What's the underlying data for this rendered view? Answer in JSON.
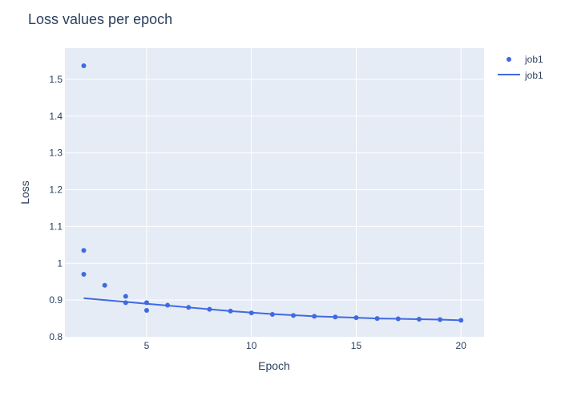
{
  "chart_data": {
    "type": "scatter",
    "title": "Loss values per epoch",
    "xlabel": "Epoch",
    "ylabel": "Loss",
    "xlim": [
      1.1,
      21.1
    ],
    "ylim": [
      0.8,
      1.585
    ],
    "xticks": [
      5,
      10,
      15,
      20
    ],
    "yticks": [
      0.8,
      0.9,
      1,
      1.1,
      1.2,
      1.3,
      1.4,
      1.5
    ],
    "xtick_labels": [
      "5",
      "10",
      "15",
      "20"
    ],
    "ytick_labels": [
      "0.8",
      "0.9",
      "1",
      "1.1",
      "1.2",
      "1.3",
      "1.4",
      "1.5"
    ],
    "grid": true,
    "legend_position": "top-right",
    "colors": {
      "series": "#4169e1",
      "plot_bg": "#e5ecf6",
      "grid": "#ffffff",
      "text": "#2a3f5f"
    },
    "series": [
      {
        "name": "job1",
        "mode": "markers",
        "x": [
          2,
          2,
          2,
          3,
          4,
          4,
          5,
          5,
          6,
          7,
          8,
          9,
          10,
          11,
          12,
          13,
          14,
          15,
          16,
          17,
          18,
          19,
          20
        ],
        "y": [
          1.537,
          1.035,
          0.97,
          0.94,
          0.91,
          0.893,
          0.893,
          0.872,
          0.886,
          0.88,
          0.875,
          0.87,
          0.865,
          0.861,
          0.858,
          0.856,
          0.854,
          0.852,
          0.85,
          0.849,
          0.848,
          0.847,
          0.845
        ]
      },
      {
        "name": "job1",
        "mode": "lines",
        "x": [
          2,
          3,
          4,
          5,
          6,
          7,
          8,
          9,
          10,
          11,
          12,
          13,
          14,
          15,
          16,
          17,
          18,
          19,
          20
        ],
        "y": [
          0.905,
          0.9,
          0.895,
          0.89,
          0.885,
          0.88,
          0.875,
          0.87,
          0.866,
          0.862,
          0.859,
          0.856,
          0.854,
          0.852,
          0.85,
          0.849,
          0.848,
          0.847,
          0.845
        ]
      }
    ]
  }
}
